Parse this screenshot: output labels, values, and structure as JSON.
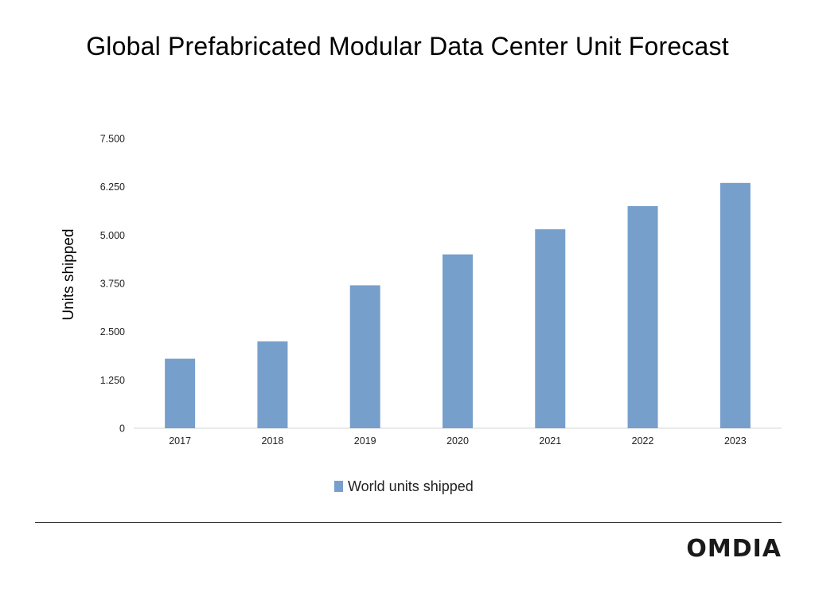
{
  "chart_data": {
    "type": "bar",
    "title": "Global Prefabricated Modular Data Center Unit Forecast",
    "xlabel": "",
    "ylabel": "Units shipped",
    "categories": [
      "2017",
      "2018",
      "2019",
      "2020",
      "2021",
      "2022",
      "2023"
    ],
    "series": [
      {
        "name": "World units shipped",
        "values": [
          1800,
          2250,
          3700,
          4500,
          5150,
          5750,
          6350
        ]
      }
    ],
    "ylim": [
      0,
      7500
    ],
    "yticks": [
      0,
      1250,
      2500,
      3750,
      5000,
      6250,
      7500
    ],
    "ytick_labels": [
      "0",
      "1.250",
      "2.500",
      "3.750",
      "5.000",
      "6.250",
      "7.500"
    ],
    "grid": false,
    "legend_position": "bottom",
    "bar_color": "#779fcc"
  },
  "logo": {
    "text": "OMDIA"
  }
}
